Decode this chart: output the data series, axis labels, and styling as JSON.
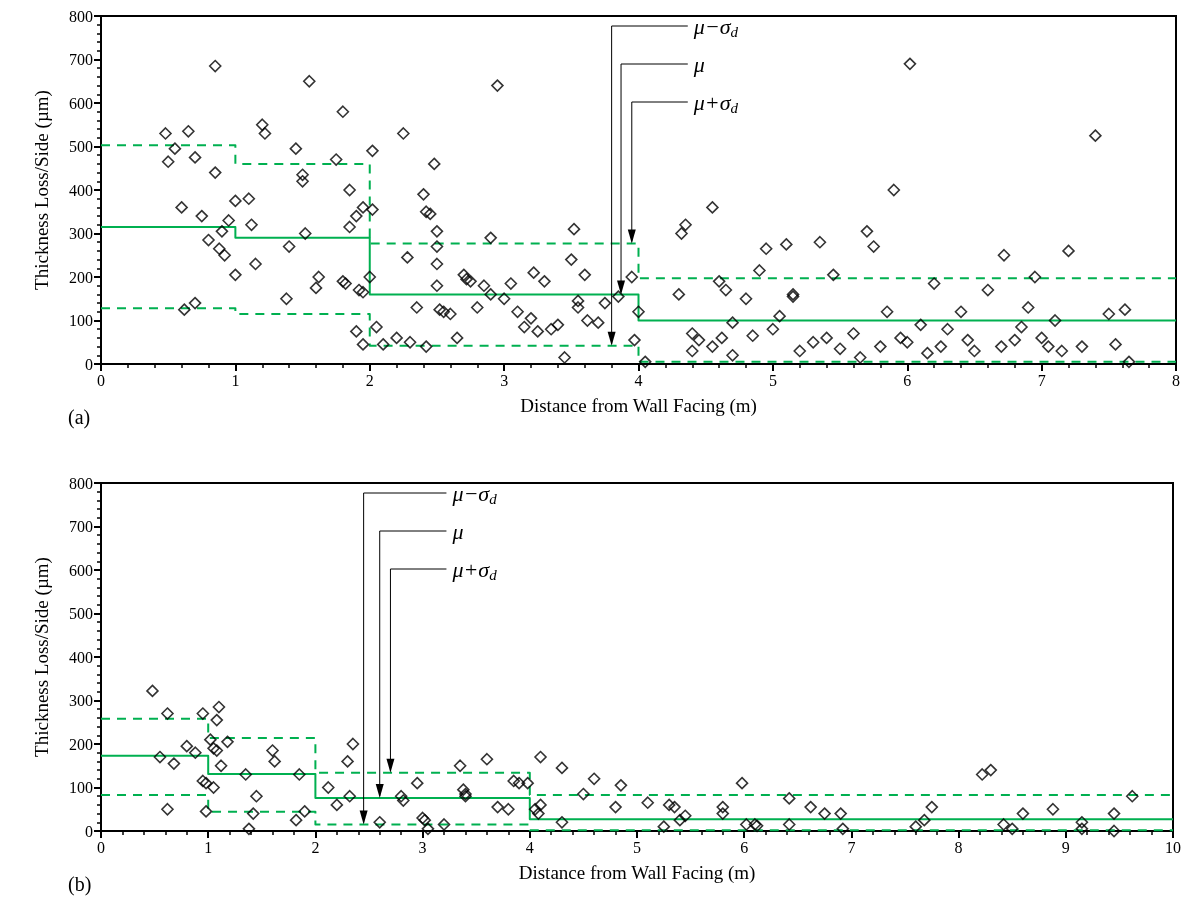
{
  "chart_data": [
    {
      "type": "scatter",
      "title": "(a)",
      "xlabel": "Distance from Wall Facing (m)",
      "ylabel": "Thickness Loss/Side (µm)",
      "xlim": [
        0,
        8
      ],
      "xticks": [
        0,
        1,
        2,
        3,
        4,
        5,
        6,
        7,
        8
      ],
      "ylim": [
        0,
        800
      ],
      "yticks": [
        0,
        100,
        200,
        300,
        400,
        500,
        600,
        700,
        800
      ],
      "annotations": [
        {
          "text": "μ−σ$_{d}$",
          "x": 3.8,
          "y": 42
        },
        {
          "text": "μ",
          "x": 3.87,
          "y": 160
        },
        {
          "text": "μ+σ$_{d}$",
          "x": 3.95,
          "y": 277
        }
      ],
      "series": [
        {
          "marker": "diamond",
          "color": "#000000",
          "x": [
            0.48,
            0.5,
            0.55,
            0.6,
            0.62,
            0.65,
            0.7,
            0.7,
            0.75,
            0.8,
            0.85,
            0.85,
            0.88,
            0.9,
            0.92,
            0.95,
            1.0,
            1.0,
            1.1,
            1.12,
            1.15,
            1.2,
            1.22,
            1.38,
            1.4,
            1.45,
            1.5,
            1.5,
            1.52,
            1.55,
            1.6,
            1.62,
            1.75,
            1.8,
            1.8,
            1.82,
            1.85,
            1.85,
            1.9,
            1.92,
            1.95,
            1.9,
            1.95,
            1.95,
            2.0,
            2.02,
            2.02,
            2.05,
            2.1,
            2.2,
            2.25,
            2.28,
            2.3,
            2.35,
            2.4,
            2.42,
            2.45,
            2.42,
            2.48,
            2.5,
            2.5,
            2.5,
            2.5,
            2.52,
            2.55,
            2.6,
            2.65,
            2.7,
            2.72,
            2.75,
            2.8,
            2.85,
            2.9,
            2.9,
            2.95,
            3.0,
            3.05,
            3.1,
            3.15,
            3.2,
            3.22,
            3.25,
            3.3,
            3.35,
            3.4,
            3.45,
            3.5,
            3.52,
            3.55,
            3.55,
            3.6,
            3.62,
            3.7,
            3.75,
            3.85,
            3.95,
            3.97,
            4.0,
            4.05,
            4.3,
            4.32,
            4.35,
            4.4,
            4.45,
            4.55,
            4.6,
            4.65,
            4.55,
            4.62,
            4.8,
            4.9,
            4.95,
            5.1,
            5.15,
            5.15,
            5.3,
            5.35,
            5.45,
            5.6,
            5.7,
            5.75,
            5.85,
            5.9,
            6.0,
            6.02,
            6.2,
            6.4,
            6.5,
            6.6,
            6.72,
            6.9,
            6.95,
            7.1,
            7.2,
            7.4,
            7.5,
            7.55,
            7.62,
            7.65,
            7.0,
            7.05,
            6.8,
            6.3,
            6.1,
            5.5,
            5.0,
            4.7,
            4.4,
            4.7,
            4.85,
            5.05,
            5.2,
            5.4,
            5.65,
            5.8,
            5.95,
            6.15,
            6.25,
            6.45,
            6.7,
            6.85,
            7.15,
            7.3
          ],
          "values": [
            530,
            465,
            495,
            360,
            125,
            535,
            475,
            140,
            340,
            285,
            685,
            440,
            265,
            305,
            250,
            330,
            205,
            375,
            380,
            320,
            230,
            550,
            530,
            150,
            270,
            495,
            420,
            435,
            300,
            650,
            175,
            200,
            470,
            580,
            190,
            185,
            400,
            315,
            340,
            170,
            360,
            75,
            45,
            165,
            200,
            490,
            355,
            85,
            45,
            60,
            530,
            245,
            50,
            130,
            390,
            350,
            345,
            40,
            460,
            305,
            270,
            230,
            180,
            125,
            120,
            115,
            60,
            205,
            195,
            190,
            130,
            180,
            290,
            160,
            640,
            150,
            185,
            120,
            85,
            105,
            210,
            75,
            190,
            80,
            90,
            15,
            240,
            310,
            145,
            130,
            205,
            100,
            95,
            140,
            155,
            200,
            55,
            120,
            5,
            160,
            300,
            320,
            70,
            55,
            360,
            190,
            170,
            40,
            60,
            150,
            215,
            265,
            275,
            160,
            155,
            50,
            280,
            205,
            70,
            305,
            270,
            120,
            400,
            50,
            690,
            185,
            120,
            30,
            170,
            250,
            130,
            200,
            100,
            260,
            525,
            115,
            45,
            125,
            5,
            60,
            40,
            55,
            80,
            90,
            35,
            80,
            95,
            30,
            20,
            65,
            110,
            30,
            60,
            15,
            40,
            60,
            25,
            40,
            55,
            40,
            85,
            30,
            40
          ]
        },
        {
          "type": "step",
          "color": "#00b050",
          "line_style": "solid",
          "marker": "none",
          "x": [
            0,
            1,
            2,
            4,
            8
          ],
          "values": [
            315,
            290,
            160,
            100,
            100
          ]
        },
        {
          "type": "step",
          "color": "#00b050",
          "line_style": "dashed",
          "marker": "none",
          "x": [
            0,
            1,
            2,
            4,
            8
          ],
          "values": [
            503,
            460,
            277,
            197,
            197
          ]
        },
        {
          "type": "step",
          "color": "#00b050",
          "line_style": "dashed",
          "marker": "none",
          "x": [
            0,
            1,
            2,
            4,
            8
          ],
          "values": [
            128,
            115,
            42,
            5,
            5
          ]
        }
      ]
    },
    {
      "type": "scatter",
      "title": "(b)",
      "xlabel": "Distance from Wall Facing (m)",
      "ylabel": "Thickness Loss/Side (µm)",
      "xlim": [
        0,
        10
      ],
      "xticks": [
        0,
        1,
        2,
        3,
        4,
        5,
        6,
        7,
        8,
        9,
        10
      ],
      "ylim": [
        0,
        800
      ],
      "yticks": [
        0,
        100,
        200,
        300,
        400,
        500,
        600,
        700,
        800
      ],
      "annotations": [
        {
          "text": "μ−σ$_{d}$",
          "x": 2.45,
          "y": 15
        },
        {
          "text": "μ",
          "x": 2.6,
          "y": 76
        },
        {
          "text": "μ+σ$_{d}$",
          "x": 2.7,
          "y": 134
        }
      ],
      "series": [
        {
          "marker": "diamond",
          "color": "#000000",
          "x": [
            0.48,
            0.55,
            0.62,
            0.62,
            0.68,
            0.8,
            0.88,
            0.95,
            0.95,
            0.98,
            0.98,
            1.02,
            1.05,
            1.05,
            1.08,
            1.08,
            1.1,
            1.12,
            1.18,
            1.35,
            1.38,
            1.42,
            1.45,
            1.6,
            1.62,
            1.82,
            1.85,
            1.9,
            2.12,
            2.2,
            2.3,
            2.32,
            2.35,
            2.6,
            2.8,
            2.82,
            2.95,
            3.0,
            3.02,
            3.05,
            3.2,
            3.35,
            3.38,
            3.4,
            3.4,
            3.6,
            3.7,
            3.8,
            3.85,
            3.9,
            3.98,
            4.05,
            4.08,
            4.1,
            4.1,
            4.3,
            4.3,
            4.5,
            4.6,
            4.8,
            4.85,
            5.1,
            5.25,
            5.3,
            5.35,
            5.4,
            5.45,
            5.8,
            5.8,
            5.98,
            6.02,
            6.1,
            6.12,
            6.42,
            6.42,
            6.62,
            6.75,
            6.9,
            6.92,
            7.6,
            7.68,
            7.75,
            8.22,
            8.3,
            8.42,
            8.5,
            8.6,
            8.88,
            9.15,
            9.15,
            9.45,
            9.45,
            9.62
          ],
          "values": [
            322,
            170,
            270,
            50,
            155,
            195,
            180,
            270,
            115,
            110,
            45,
            210,
            100,
            190,
            255,
            185,
            285,
            150,
            205,
            130,
            5,
            40,
            80,
            185,
            160,
            25,
            130,
            45,
            100,
            60,
            160,
            80,
            200,
            20,
            80,
            70,
            110,
            30,
            25,
            5,
            15,
            150,
            95,
            85,
            80,
            165,
            55,
            50,
            115,
            110,
            110,
            50,
            40,
            60,
            170,
            145,
            20,
            85,
            120,
            55,
            105,
            65,
            10,
            60,
            55,
            25,
            35,
            55,
            40,
            110,
            15,
            15,
            12,
            15,
            75,
            55,
            40,
            40,
            5,
            10,
            25,
            55,
            130,
            140,
            15,
            5,
            40,
            50,
            5,
            20,
            0,
            40,
            80
          ]
        },
        {
          "type": "step",
          "color": "#00b050",
          "line_style": "solid",
          "marker": "none",
          "x": [
            0,
            1,
            2,
            4,
            10
          ],
          "values": [
            173,
            131,
            76,
            27,
            27
          ]
        },
        {
          "type": "step",
          "color": "#00b050",
          "line_style": "dashed",
          "marker": "none",
          "x": [
            0,
            1,
            2,
            4,
            10
          ],
          "values": [
            258,
            214,
            134,
            83,
            83
          ]
        },
        {
          "type": "step",
          "color": "#00b050",
          "line_style": "dashed",
          "marker": "none",
          "x": [
            0,
            1,
            2,
            4,
            10
          ],
          "values": [
            83,
            44,
            15,
            2,
            2
          ]
        }
      ]
    }
  ]
}
